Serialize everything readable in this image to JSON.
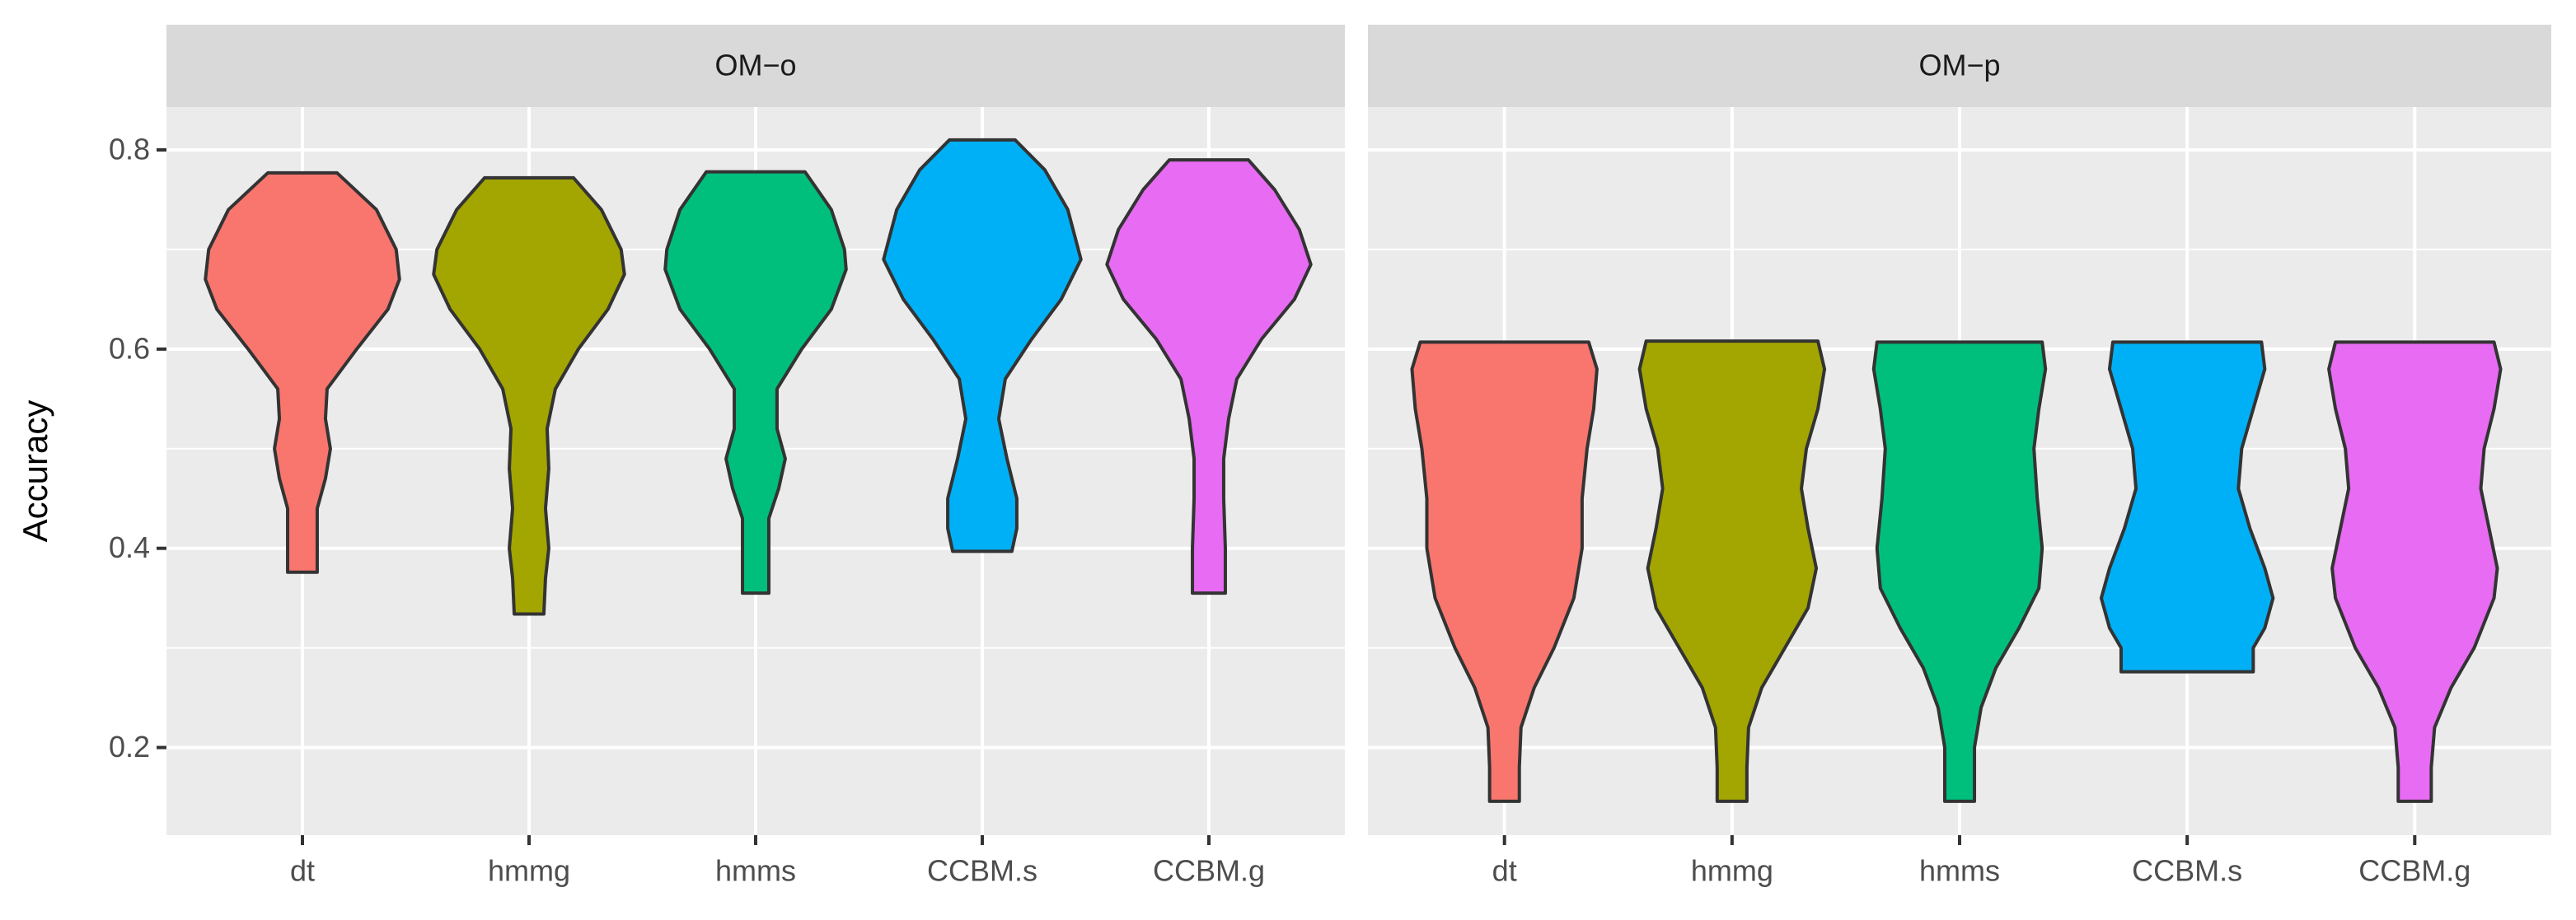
{
  "chart_data": {
    "type": "violin",
    "ylabel": "Accuracy",
    "categories": [
      "dt",
      "hmmg",
      "hmms",
      "CCBM.s",
      "CCBM.g"
    ],
    "colors": [
      "#F8766D",
      "#A3A500",
      "#00BF7D",
      "#00B0F6",
      "#E76BF3"
    ],
    "ylim": [
      0.112,
      0.843
    ],
    "yticks": [
      0.2,
      0.4,
      0.6,
      0.8
    ],
    "grid": true,
    "panels": [
      {
        "title": "OM−o",
        "violins": [
          {
            "y": [
              0.777,
              0.74,
              0.7,
              0.67,
              0.64,
              0.6,
              0.56,
              0.53,
              0.5,
              0.47,
              0.44,
              0.4,
              0.376
            ],
            "density": [
              21,
              45,
              57,
              59,
              52,
              33,
              15,
              14,
              17,
              14,
              9,
              9,
              9
            ]
          },
          {
            "y": [
              0.772,
              0.74,
              0.7,
              0.675,
              0.64,
              0.6,
              0.56,
              0.52,
              0.48,
              0.44,
              0.4,
              0.37,
              0.334
            ],
            "density": [
              27,
              44,
              56,
              58,
              48,
              30,
              16,
              11,
              12,
              10,
              12,
              10,
              9
            ]
          },
          {
            "y": [
              0.778,
              0.74,
              0.7,
              0.68,
              0.64,
              0.6,
              0.56,
              0.52,
              0.49,
              0.46,
              0.43,
              0.39,
              0.355
            ],
            "density": [
              30,
              46,
              54,
              55,
              46,
              28,
              13,
              13,
              18,
              14,
              8,
              8,
              8
            ]
          },
          {
            "y": [
              0.81,
              0.78,
              0.74,
              0.69,
              0.65,
              0.61,
              0.57,
              0.53,
              0.49,
              0.45,
              0.42,
              0.397
            ],
            "density": [
              20,
              38,
              52,
              60,
              48,
              30,
              14,
              10,
              15,
              21,
              21,
              18
            ]
          },
          {
            "y": [
              0.79,
              0.76,
              0.72,
              0.685,
              0.65,
              0.61,
              0.57,
              0.53,
              0.49,
              0.45,
              0.4,
              0.355
            ],
            "density": [
              24,
              40,
              55,
              62,
              52,
              32,
              17,
              12,
              9,
              9,
              10,
              10
            ]
          }
        ]
      },
      {
        "title": "OM−p",
        "violins": [
          {
            "y": [
              0.607,
              0.58,
              0.54,
              0.5,
              0.45,
              0.4,
              0.35,
              0.3,
              0.26,
              0.22,
              0.18,
              0.146
            ],
            "density": [
              51,
              56,
              54,
              50,
              47,
              47,
              42,
              30,
              18,
              10,
              9,
              9
            ]
          },
          {
            "y": [
              0.608,
              0.58,
              0.54,
              0.5,
              0.46,
              0.42,
              0.38,
              0.34,
              0.3,
              0.26,
              0.22,
              0.18,
              0.146
            ],
            "density": [
              52,
              56,
              52,
              45,
              42,
              46,
              51,
              46,
              32,
              18,
              10,
              9,
              9
            ]
          },
          {
            "y": [
              0.607,
              0.58,
              0.54,
              0.5,
              0.45,
              0.4,
              0.36,
              0.32,
              0.28,
              0.24,
              0.2,
              0.146
            ],
            "density": [
              50,
              52,
              48,
              45,
              47,
              50,
              48,
              36,
              22,
              13,
              9,
              9
            ]
          },
          {
            "y": [
              0.607,
              0.58,
              0.54,
              0.5,
              0.46,
              0.42,
              0.38,
              0.35,
              0.32,
              0.3,
              0.276
            ],
            "density": [
              45,
              47,
              40,
              33,
              31,
              38,
              47,
              52,
              47,
              40,
              40
            ]
          },
          {
            "y": [
              0.607,
              0.58,
              0.54,
              0.5,
              0.46,
              0.42,
              0.38,
              0.35,
              0.3,
              0.26,
              0.22,
              0.18,
              0.146
            ],
            "density": [
              48,
              52,
              48,
              42,
              40,
              45,
              50,
              48,
              36,
              22,
              12,
              10,
              10
            ]
          }
        ]
      }
    ]
  }
}
